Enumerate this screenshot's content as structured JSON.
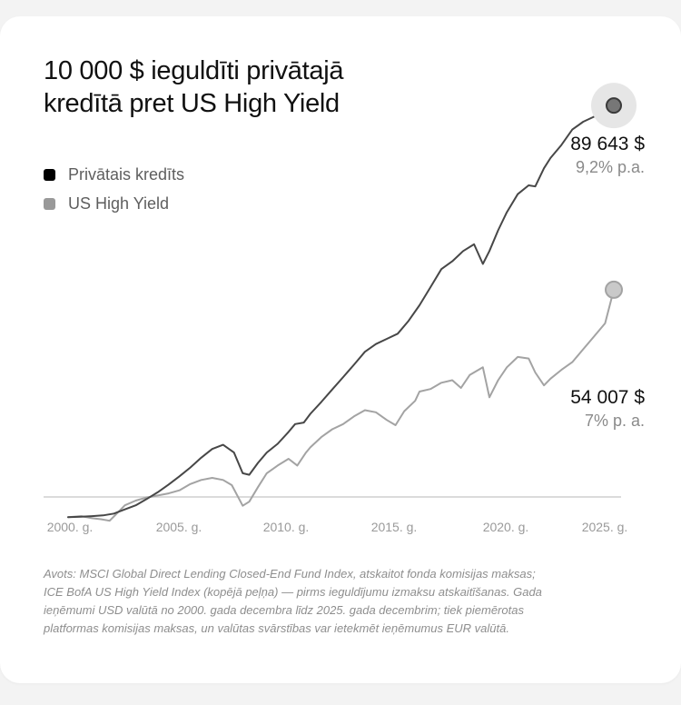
{
  "title_lines": [
    "10 000 $ ieguldīti privātajā",
    "kredītā pret US High Yield"
  ],
  "colors": {
    "private": "#474747",
    "high_yield": "#a3a3a3",
    "axis": "#cfcfcf",
    "tick": "#9a9a9a"
  },
  "chart_data": {
    "type": "line",
    "title": "10 000 $ ieguldīti privātajā kredītā pret US High Yield",
    "xlabel": "",
    "ylabel": "",
    "x_ticks": [
      "2000. g.",
      "2005. g.",
      "2010. g.",
      "2015. g.",
      "2020. g.",
      "2025. g."
    ],
    "xlim": [
      2000.9,
      2025.9
    ],
    "ylim": [
      6000,
      96000
    ],
    "grid": false,
    "legend_position": "top-left",
    "series": [
      {
        "name": "Privātais kredīts",
        "end_value": "89 643 $",
        "end_rate": "9,2% p.a.",
        "x": [
          2000.9,
          2001.5,
          2002,
          2002.5,
          2003,
          2003.5,
          2004,
          2004.5,
          2005,
          2005.5,
          2006,
          2006.5,
          2007,
          2007.5,
          2008,
          2008.5,
          2008.9,
          2009.2,
          2009.6,
          2010,
          2010.5,
          2011,
          2011.3,
          2011.7,
          2012,
          2012.5,
          2013,
          2013.5,
          2014,
          2014.5,
          2015,
          2015.5,
          2016,
          2016.5,
          2017,
          2017.5,
          2018,
          2018.5,
          2019,
          2019.5,
          2019.9,
          2020.2,
          2020.6,
          2021,
          2021.5,
          2022,
          2022.3,
          2022.7,
          2023,
          2023.5,
          2024,
          2024.5,
          2025,
          2025.5,
          2025.9
        ],
        "y": [
          10000,
          10100,
          10200,
          10350,
          10700,
          11500,
          12300,
          13500,
          14800,
          16300,
          17900,
          19600,
          21500,
          23200,
          24000,
          22500,
          18500,
          18200,
          20500,
          22500,
          24200,
          26500,
          28000,
          28300,
          30000,
          32300,
          34700,
          37100,
          39500,
          42000,
          43500,
          44500,
          45500,
          48000,
          51000,
          54500,
          58000,
          59500,
          61500,
          62800,
          59000,
          61500,
          65500,
          69000,
          72500,
          74200,
          74000,
          77500,
          79500,
          82000,
          85000,
          86500,
          87500,
          89000,
          89643
        ]
      },
      {
        "name": "US High Yield",
        "end_value": "54 007 $",
        "end_rate": "7% p. a.",
        "x": [
          2000.9,
          2001.5,
          2002,
          2002.4,
          2002.8,
          2003.2,
          2003.5,
          2004,
          2004.5,
          2005,
          2005.5,
          2006,
          2006.5,
          2007,
          2007.5,
          2008,
          2008.4,
          2008.9,
          2009.2,
          2009.6,
          2010,
          2010.5,
          2011,
          2011.4,
          2011.8,
          2012,
          2012.5,
          2013,
          2013.5,
          2014,
          2014.5,
          2015,
          2015.5,
          2015.9,
          2016.3,
          2016.8,
          2017,
          2017.5,
          2018,
          2018.5,
          2018.9,
          2019.3,
          2019.9,
          2020.2,
          2020.6,
          2021,
          2021.5,
          2022,
          2022.3,
          2022.7,
          2023,
          2023.5,
          2024,
          2024.5,
          2025,
          2025.5,
          2025.9
        ],
        "y": [
          10000,
          10200,
          9800,
          9600,
          9300,
          11000,
          12300,
          13200,
          13800,
          14200,
          14600,
          15200,
          16400,
          17200,
          17600,
          17200,
          16200,
          12200,
          13000,
          15800,
          18500,
          20000,
          21300,
          20000,
          22500,
          23500,
          25500,
          27000,
          28000,
          29500,
          30700,
          30300,
          28800,
          27800,
          30500,
          32500,
          34300,
          34800,
          36000,
          36500,
          35000,
          37500,
          39000,
          33200,
          36500,
          39000,
          41000,
          40700,
          38000,
          35500,
          36800,
          38500,
          40000,
          42500,
          45000,
          47500,
          54007
        ]
      }
    ]
  },
  "source_lines": [
    "Avots: MSCI Global Direct Lending Closed-End Fund Index, atskaitot fonda komisijas maksas;",
    "ICE BofA US High Yield Index (kopējā peļņa) — pirms ieguldījumu izmaksu atskaitīšanas. Gada",
    "ieņēmumi USD valūtā no 2000. gada decembra līdz 2025. gada decembrim; tiek piemērotas",
    "platformas komisijas maksas, un valūtas svārstības var ietekmēt ieņēmumus EUR valūtā."
  ]
}
